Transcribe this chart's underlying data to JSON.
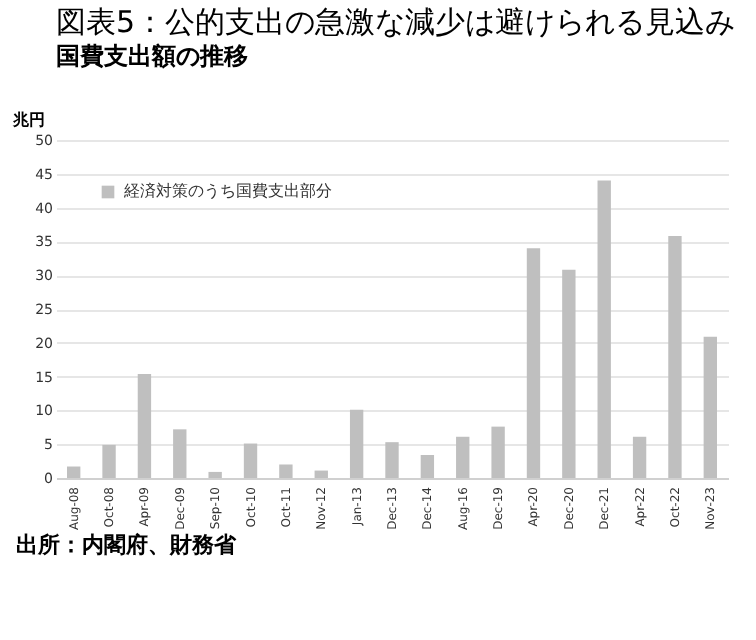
{
  "chart_data": {
    "type": "bar",
    "title": "図表5：公的支出の急激な減少は避けられる見込み",
    "subtitle": "国費支出額の推移",
    "ylabel": "兆円",
    "categories": [
      "Aug-08",
      "Oct-08",
      "Apr-09",
      "Dec-09",
      "Sep-10",
      "Oct-10",
      "Oct-11",
      "Nov-12",
      "Jan-13",
      "Dec-13",
      "Dec-14",
      "Aug-16",
      "Dec-19",
      "Apr-20",
      "Dec-20",
      "Dec-21",
      "Apr-22",
      "Oct-22",
      "Nov-23"
    ],
    "series": [
      {
        "name": "経済対策のうち国費支出部分",
        "color": "#bfbfbf",
        "values": [
          1.7,
          4.9,
          15.4,
          7.2,
          0.9,
          5.1,
          2.0,
          1.1,
          10.1,
          5.3,
          3.4,
          6.1,
          7.6,
          34.0,
          30.8,
          44.0,
          6.1,
          35.8,
          20.9
        ]
      }
    ],
    "ylim": [
      0,
      50
    ],
    "yticks": [
      0,
      5,
      10,
      15,
      20,
      25,
      30,
      35,
      40,
      45,
      50
    ],
    "grid": "y",
    "legend": "top left",
    "annotations": [
      "出所：内閣府、財務省"
    ]
  }
}
